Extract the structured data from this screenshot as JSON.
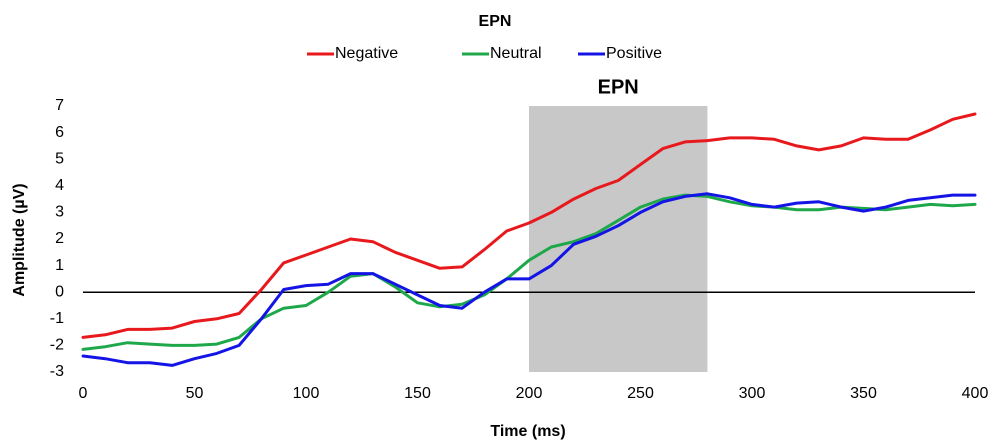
{
  "chart_data": {
    "type": "line",
    "title": "EPN",
    "x_label": "Time (ms)",
    "y_label": "Amplitude (µV)",
    "x": [
      0,
      10,
      20,
      30,
      40,
      50,
      60,
      70,
      80,
      90,
      100,
      110,
      120,
      130,
      140,
      150,
      160,
      170,
      180,
      190,
      200,
      210,
      220,
      230,
      240,
      250,
      260,
      270,
      280,
      290,
      300,
      310,
      320,
      330,
      340,
      350,
      360,
      370,
      380,
      390,
      400
    ],
    "series": [
      {
        "name": "Negative",
        "color": "#e8191c",
        "values": [
          -1.7,
          -1.6,
          -1.4,
          -1.4,
          -1.35,
          -1.1,
          -1.0,
          -0.8,
          0.1,
          1.1,
          1.4,
          1.7,
          2.0,
          1.9,
          1.5,
          1.2,
          0.9,
          0.95,
          1.6,
          2.3,
          2.6,
          3.0,
          3.5,
          3.9,
          4.2,
          4.8,
          5.4,
          5.65,
          5.7,
          5.8,
          5.8,
          5.75,
          5.5,
          5.35,
          5.5,
          5.8,
          5.75,
          5.75,
          6.1,
          6.5,
          6.7
        ]
      },
      {
        "name": "Neutral",
        "color": "#1ea84a",
        "values": [
          -2.15,
          -2.05,
          -1.9,
          -1.95,
          -2.0,
          -2.0,
          -1.95,
          -1.7,
          -1.0,
          -0.6,
          -0.5,
          0.0,
          0.6,
          0.7,
          0.2,
          -0.4,
          -0.55,
          -0.45,
          -0.1,
          0.5,
          1.2,
          1.7,
          1.9,
          2.2,
          2.7,
          3.2,
          3.5,
          3.65,
          3.6,
          3.4,
          3.25,
          3.2,
          3.1,
          3.1,
          3.2,
          3.15,
          3.1,
          3.2,
          3.3,
          3.25,
          3.3
        ]
      },
      {
        "name": "Positive",
        "color": "#1414e6",
        "values": [
          -2.4,
          -2.5,
          -2.65,
          -2.65,
          -2.75,
          -2.5,
          -2.3,
          -2.0,
          -1.0,
          0.1,
          0.25,
          0.3,
          0.7,
          0.7,
          0.3,
          -0.1,
          -0.5,
          -0.6,
          0.0,
          0.5,
          0.5,
          1.0,
          1.8,
          2.1,
          2.5,
          3.0,
          3.4,
          3.6,
          3.7,
          3.55,
          3.3,
          3.2,
          3.35,
          3.4,
          3.2,
          3.05,
          3.2,
          3.45,
          3.55,
          3.65,
          3.65
        ]
      }
    ],
    "shade": {
      "x": [
        200,
        280
      ],
      "label": "EPN",
      "color": "#c8c8c8"
    },
    "xlim": [
      0,
      400
    ],
    "xticks": [
      0,
      50,
      100,
      150,
      200,
      250,
      300,
      350,
      400
    ],
    "ylim": [
      -3,
      7
    ],
    "yticks": [
      -3,
      -2,
      -1,
      0,
      1,
      2,
      3,
      4,
      5,
      6,
      7
    ],
    "grid": false,
    "legend": "top"
  }
}
